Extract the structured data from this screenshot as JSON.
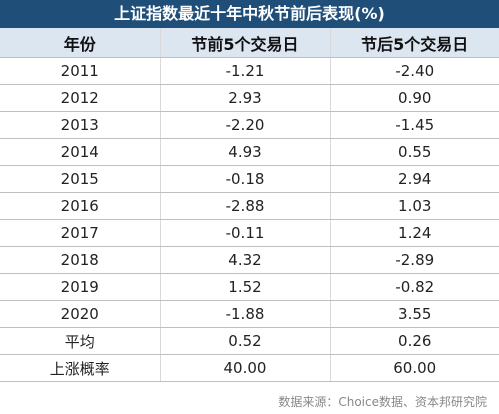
{
  "title": "上证指数最近十年中秋节前后表现(%)",
  "table": {
    "header": [
      "年份",
      "节前5个交易日",
      "节后5个交易日"
    ],
    "rows": [
      [
        "2011",
        "-1.21",
        "-2.40"
      ],
      [
        "2012",
        "2.93",
        "0.90"
      ],
      [
        "2013",
        "-2.20",
        "-1.45"
      ],
      [
        "2014",
        "4.93",
        "0.55"
      ],
      [
        "2015",
        "-0.18",
        "2.94"
      ],
      [
        "2016",
        "-2.88",
        "1.03"
      ],
      [
        "2017",
        "-0.11",
        "1.24"
      ],
      [
        "2018",
        "4.32",
        "-2.89"
      ],
      [
        "2019",
        "1.52",
        "-0.82"
      ],
      [
        "2020",
        "-1.88",
        "3.55"
      ],
      [
        "平均",
        "0.52",
        "0.26"
      ],
      [
        "上涨概率",
        "40.00",
        "60.00"
      ]
    ]
  },
  "footer": "数据来源：Choice数据、资本邦研究院"
}
